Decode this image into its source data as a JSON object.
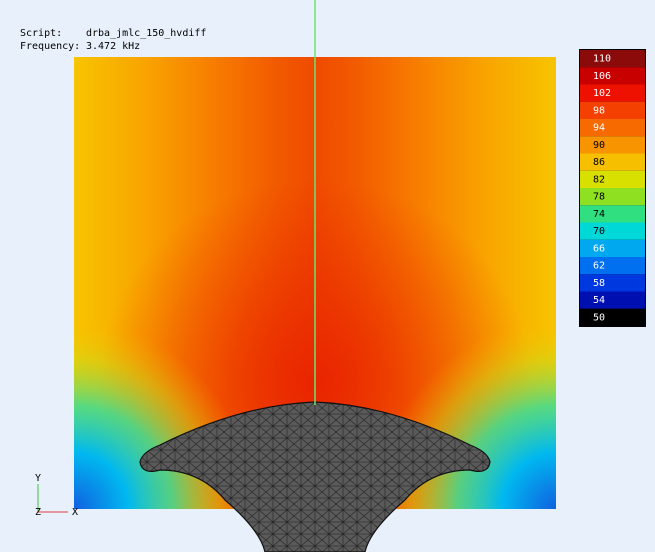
{
  "info": {
    "script_label": "Script:",
    "script": "drba_jmlc_150_hvdiff",
    "frequency_label": "Frequency:",
    "frequency": "3.472 kHz"
  },
  "colorbar": {
    "ticks": [
      110,
      106,
      102,
      98,
      94,
      90,
      86,
      82,
      78,
      74,
      70,
      66,
      62,
      58,
      54,
      50
    ]
  },
  "axes": {
    "y": "Y",
    "z": "Z",
    "x": "X"
  }
}
